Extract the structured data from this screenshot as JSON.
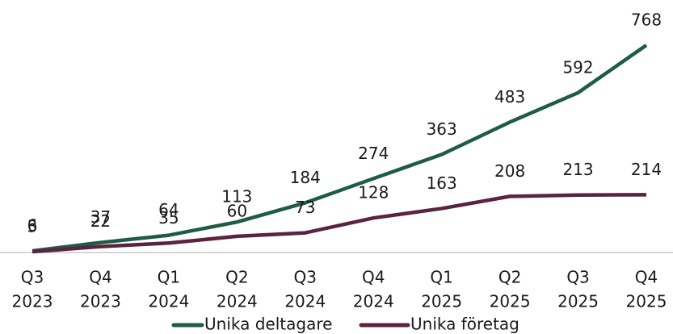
{
  "chart_data": {
    "type": "line",
    "categories": [
      [
        "Q3",
        "2023"
      ],
      [
        "Q4",
        "2023"
      ],
      [
        "Q1",
        "2024"
      ],
      [
        "Q2",
        "2024"
      ],
      [
        "Q3",
        "2024"
      ],
      [
        "Q4",
        "2024"
      ],
      [
        "Q1",
        "2025"
      ],
      [
        "Q2",
        "2025"
      ],
      [
        "Q3",
        "2025"
      ],
      [
        "Q4",
        "2025"
      ]
    ],
    "series": [
      {
        "name": "Unika deltagare",
        "color": "#1e5c44",
        "values": [
          6,
          37,
          64,
          113,
          184,
          274,
          363,
          483,
          592,
          768
        ]
      },
      {
        "name": "Unika företag",
        "color": "#5a2340",
        "values": [
          3,
          22,
          35,
          60,
          73,
          128,
          163,
          208,
          213,
          214
        ]
      }
    ],
    "legend": "bottom"
  }
}
